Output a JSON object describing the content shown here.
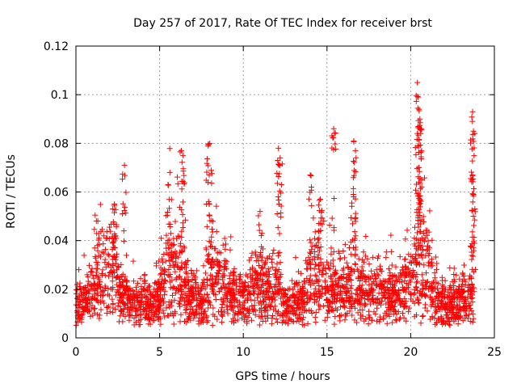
{
  "chart_data": {
    "type": "scatter",
    "title": "Day 257 of 2017, Rate Of TEC Index for receiver brst",
    "xlabel": "GPS time / hours",
    "ylabel": "ROTI / TECUs",
    "xlim": [
      0,
      25
    ],
    "ylim": [
      0,
      0.12
    ],
    "xticks": [
      0,
      5,
      10,
      15,
      20,
      25
    ],
    "xtick_labels": [
      "0",
      "5",
      "10",
      "15",
      "20",
      "25"
    ],
    "yticks": [
      0,
      0.02,
      0.04,
      0.06,
      0.08,
      0.1,
      0.12
    ],
    "ytick_labels": [
      "0",
      "0.02",
      "0.04",
      "0.06",
      "0.08",
      "0.1",
      "0.12"
    ],
    "grid": true,
    "marker": "+",
    "color": "#ff0000",
    "x_range_hours": [
      0,
      23.8
    ],
    "baseline_envelope": [
      [
        0.0,
        0.012
      ],
      [
        0.8,
        0.015
      ],
      [
        1.2,
        0.025
      ],
      [
        1.8,
        0.03
      ],
      [
        2.2,
        0.035
      ],
      [
        2.6,
        0.02
      ],
      [
        3.0,
        0.015
      ],
      [
        4.0,
        0.012
      ],
      [
        5.0,
        0.015
      ],
      [
        5.6,
        0.035
      ],
      [
        6.0,
        0.03
      ],
      [
        6.5,
        0.02
      ],
      [
        7.5,
        0.012
      ],
      [
        8.0,
        0.025
      ],
      [
        8.5,
        0.03
      ],
      [
        9.0,
        0.02
      ],
      [
        10.0,
        0.015
      ],
      [
        10.8,
        0.025
      ],
      [
        11.5,
        0.02
      ],
      [
        12.0,
        0.02
      ],
      [
        12.5,
        0.012
      ],
      [
        13.5,
        0.012
      ],
      [
        14.0,
        0.025
      ],
      [
        14.5,
        0.03
      ],
      [
        15.0,
        0.02
      ],
      [
        16.0,
        0.02
      ],
      [
        16.5,
        0.025
      ],
      [
        17.0,
        0.02
      ],
      [
        18.0,
        0.018
      ],
      [
        19.0,
        0.018
      ],
      [
        19.5,
        0.02
      ],
      [
        20.0,
        0.025
      ],
      [
        20.5,
        0.035
      ],
      [
        21.0,
        0.03
      ],
      [
        21.5,
        0.015
      ],
      [
        22.0,
        0.012
      ],
      [
        23.0,
        0.015
      ],
      [
        23.8,
        0.015
      ]
    ],
    "spikes": [
      {
        "x": 2.9,
        "y": 0.071
      },
      {
        "x": 6.3,
        "y": 0.077
      },
      {
        "x": 6.4,
        "y": 0.075
      },
      {
        "x": 7.9,
        "y": 0.079
      },
      {
        "x": 8.0,
        "y": 0.08
      },
      {
        "x": 12.1,
        "y": 0.078
      },
      {
        "x": 12.2,
        "y": 0.074
      },
      {
        "x": 14.0,
        "y": 0.067
      },
      {
        "x": 15.4,
        "y": 0.086
      },
      {
        "x": 16.6,
        "y": 0.081
      },
      {
        "x": 16.7,
        "y": 0.077
      },
      {
        "x": 20.4,
        "y": 0.105
      },
      {
        "x": 20.45,
        "y": 0.099
      },
      {
        "x": 20.5,
        "y": 0.094
      },
      {
        "x": 20.55,
        "y": 0.09
      },
      {
        "x": 20.6,
        "y": 0.084
      },
      {
        "x": 20.5,
        "y": 0.07
      },
      {
        "x": 23.7,
        "y": 0.093
      },
      {
        "x": 23.75,
        "y": 0.085
      },
      {
        "x": 23.7,
        "y": 0.067
      },
      {
        "x": 23.75,
        "y": 0.059
      },
      {
        "x": 5.5,
        "y": 0.063
      },
      {
        "x": 2.3,
        "y": 0.055
      },
      {
        "x": 14.6,
        "y": 0.057
      },
      {
        "x": 11.0,
        "y": 0.052
      }
    ]
  }
}
